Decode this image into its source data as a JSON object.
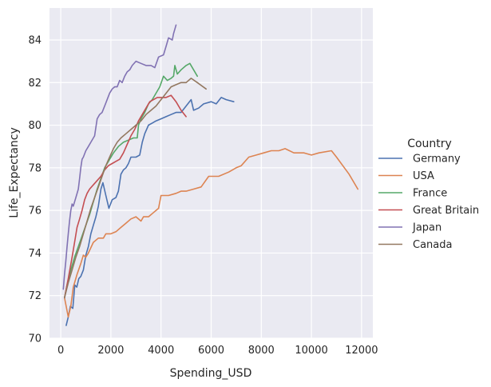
{
  "chart_data": {
    "type": "line",
    "xlabel": "Spending_USD",
    "ylabel": "Life_Expectancy",
    "xlim": [
      -450,
      12450
    ],
    "ylim": [
      70,
      85.5
    ],
    "xticks": [
      0,
      2000,
      4000,
      6000,
      8000,
      10000,
      12000
    ],
    "yticks": [
      70,
      72,
      74,
      76,
      78,
      80,
      82,
      84
    ],
    "grid": true,
    "legend": {
      "title": "Country",
      "placement": "right"
    },
    "series": [
      {
        "name": "Germany",
        "color": "#4c72b0",
        "points": [
          [
            215,
            70.6
          ],
          [
            300,
            71.0
          ],
          [
            380,
            71.5
          ],
          [
            480,
            71.4
          ],
          [
            560,
            72.5
          ],
          [
            640,
            72.4
          ],
          [
            720,
            72.8
          ],
          [
            800,
            72.9
          ],
          [
            900,
            73.2
          ],
          [
            1000,
            73.9
          ],
          [
            1100,
            74.3
          ],
          [
            1200,
            74.9
          ],
          [
            1300,
            75.3
          ],
          [
            1400,
            75.7
          ],
          [
            1500,
            76.2
          ],
          [
            1600,
            77.0
          ],
          [
            1680,
            77.3
          ],
          [
            1800,
            76.7
          ],
          [
            1920,
            76.1
          ],
          [
            2050,
            76.5
          ],
          [
            2200,
            76.6
          ],
          [
            2300,
            76.9
          ],
          [
            2400,
            77.7
          ],
          [
            2500,
            77.9
          ],
          [
            2600,
            78.0
          ],
          [
            2700,
            78.2
          ],
          [
            2800,
            78.5
          ],
          [
            3000,
            78.5
          ],
          [
            3150,
            78.6
          ],
          [
            3250,
            79.2
          ],
          [
            3350,
            79.6
          ],
          [
            3500,
            80.0
          ],
          [
            3650,
            80.1
          ],
          [
            3800,
            80.2
          ],
          [
            4000,
            80.3
          ],
          [
            4200,
            80.4
          ],
          [
            4400,
            80.5
          ],
          [
            4600,
            80.6
          ],
          [
            4800,
            80.6
          ],
          [
            5000,
            80.9
          ],
          [
            5200,
            81.2
          ],
          [
            5300,
            80.7
          ],
          [
            5500,
            80.8
          ],
          [
            5700,
            81.0
          ],
          [
            6000,
            81.1
          ],
          [
            6200,
            81.0
          ],
          [
            6400,
            81.3
          ],
          [
            6600,
            81.2
          ],
          [
            6900,
            81.1
          ]
        ]
      },
      {
        "name": "USA",
        "color": "#dd8452",
        "points": [
          [
            150,
            71.9
          ],
          [
            300,
            71.0
          ],
          [
            400,
            71.5
          ],
          [
            500,
            72.4
          ],
          [
            650,
            73.0
          ],
          [
            800,
            73.5
          ],
          [
            900,
            73.9
          ],
          [
            1000,
            73.8
          ],
          [
            1100,
            74.0
          ],
          [
            1300,
            74.5
          ],
          [
            1500,
            74.7
          ],
          [
            1700,
            74.7
          ],
          [
            1800,
            74.9
          ],
          [
            2000,
            74.9
          ],
          [
            2200,
            75.0
          ],
          [
            2400,
            75.2
          ],
          [
            2600,
            75.4
          ],
          [
            2800,
            75.6
          ],
          [
            3000,
            75.7
          ],
          [
            3200,
            75.5
          ],
          [
            3300,
            75.7
          ],
          [
            3500,
            75.7
          ],
          [
            3700,
            75.9
          ],
          [
            3900,
            76.1
          ],
          [
            4000,
            76.7
          ],
          [
            4300,
            76.7
          ],
          [
            4600,
            76.8
          ],
          [
            4800,
            76.9
          ],
          [
            5000,
            76.9
          ],
          [
            5300,
            77.0
          ],
          [
            5600,
            77.1
          ],
          [
            5900,
            77.6
          ],
          [
            6300,
            77.6
          ],
          [
            6700,
            77.8
          ],
          [
            7000,
            78.0
          ],
          [
            7200,
            78.1
          ],
          [
            7500,
            78.5
          ],
          [
            7800,
            78.6
          ],
          [
            8100,
            78.7
          ],
          [
            8400,
            78.8
          ],
          [
            8700,
            78.8
          ],
          [
            8950,
            78.9
          ],
          [
            9300,
            78.7
          ],
          [
            9700,
            78.7
          ],
          [
            10000,
            78.6
          ],
          [
            10300,
            78.7
          ],
          [
            10800,
            78.8
          ],
          [
            11000,
            78.5
          ],
          [
            11500,
            77.7
          ],
          [
            11850,
            77.0
          ]
        ]
      },
      {
        "name": "France",
        "color": "#55a868",
        "points": [
          [
            150,
            71.9
          ],
          [
            250,
            72.5
          ],
          [
            400,
            73.2
          ],
          [
            550,
            73.8
          ],
          [
            700,
            74.3
          ],
          [
            850,
            74.8
          ],
          [
            1000,
            75.3
          ],
          [
            1150,
            75.8
          ],
          [
            1300,
            76.4
          ],
          [
            1450,
            77.0
          ],
          [
            1600,
            77.5
          ],
          [
            1750,
            78.0
          ],
          [
            1900,
            78.3
          ],
          [
            2100,
            78.7
          ],
          [
            2300,
            79.0
          ],
          [
            2500,
            79.2
          ],
          [
            2700,
            79.3
          ],
          [
            2900,
            79.4
          ],
          [
            3050,
            79.4
          ],
          [
            3100,
            80.0
          ],
          [
            3200,
            80.3
          ],
          [
            3350,
            80.6
          ],
          [
            3500,
            81.0
          ],
          [
            3650,
            81.2
          ],
          [
            3800,
            81.5
          ],
          [
            3950,
            81.8
          ],
          [
            4100,
            82.3
          ],
          [
            4250,
            82.1
          ],
          [
            4400,
            82.2
          ],
          [
            4500,
            82.3
          ],
          [
            4550,
            82.8
          ],
          [
            4650,
            82.4
          ],
          [
            4800,
            82.6
          ],
          [
            5000,
            82.8
          ],
          [
            5150,
            82.9
          ],
          [
            5300,
            82.6
          ],
          [
            5450,
            82.3
          ]
        ]
      },
      {
        "name": "Great Britain",
        "color": "#c44e52",
        "points": [
          [
            150,
            71.9
          ],
          [
            300,
            72.8
          ],
          [
            450,
            73.8
          ],
          [
            550,
            74.5
          ],
          [
            650,
            75.2
          ],
          [
            750,
            75.6
          ],
          [
            850,
            76.0
          ],
          [
            950,
            76.5
          ],
          [
            1050,
            76.8
          ],
          [
            1150,
            77.0
          ],
          [
            1300,
            77.2
          ],
          [
            1450,
            77.4
          ],
          [
            1600,
            77.6
          ],
          [
            1750,
            77.9
          ],
          [
            1900,
            78.1
          ],
          [
            2050,
            78.2
          ],
          [
            2200,
            78.3
          ],
          [
            2350,
            78.4
          ],
          [
            2500,
            78.7
          ],
          [
            2650,
            79.1
          ],
          [
            2800,
            79.5
          ],
          [
            2950,
            79.8
          ],
          [
            3100,
            80.2
          ],
          [
            3250,
            80.5
          ],
          [
            3400,
            80.8
          ],
          [
            3550,
            81.1
          ],
          [
            3700,
            81.2
          ],
          [
            3850,
            81.3
          ],
          [
            4000,
            81.3
          ],
          [
            4200,
            81.3
          ],
          [
            4400,
            81.4
          ],
          [
            4600,
            81.1
          ],
          [
            4800,
            80.7
          ],
          [
            5000,
            80.4
          ]
        ]
      },
      {
        "name": "Japan",
        "color": "#8172b3",
        "points": [
          [
            100,
            72.3
          ],
          [
            150,
            73.0
          ],
          [
            200,
            73.6
          ],
          [
            250,
            74.3
          ],
          [
            300,
            74.9
          ],
          [
            350,
            75.5
          ],
          [
            400,
            76.0
          ],
          [
            450,
            76.3
          ],
          [
            500,
            76.2
          ],
          [
            600,
            76.6
          ],
          [
            700,
            77.0
          ],
          [
            750,
            77.5
          ],
          [
            800,
            78.0
          ],
          [
            850,
            78.4
          ],
          [
            900,
            78.5
          ],
          [
            1000,
            78.8
          ],
          [
            1100,
            79.0
          ],
          [
            1200,
            79.2
          ],
          [
            1350,
            79.5
          ],
          [
            1450,
            80.3
          ],
          [
            1550,
            80.5
          ],
          [
            1650,
            80.6
          ],
          [
            1750,
            80.9
          ],
          [
            1850,
            81.2
          ],
          [
            1950,
            81.5
          ],
          [
            2050,
            81.7
          ],
          [
            2150,
            81.8
          ],
          [
            2250,
            81.8
          ],
          [
            2350,
            82.1
          ],
          [
            2450,
            82.0
          ],
          [
            2550,
            82.3
          ],
          [
            2650,
            82.5
          ],
          [
            2750,
            82.6
          ],
          [
            2850,
            82.8
          ],
          [
            3000,
            83.0
          ],
          [
            3200,
            82.9
          ],
          [
            3400,
            82.8
          ],
          [
            3600,
            82.8
          ],
          [
            3750,
            82.7
          ],
          [
            3900,
            83.2
          ],
          [
            4100,
            83.3
          ],
          [
            4200,
            83.7
          ],
          [
            4300,
            84.1
          ],
          [
            4450,
            84.0
          ],
          [
            4500,
            84.3
          ],
          [
            4600,
            84.7
          ]
        ]
      },
      {
        "name": "Canada",
        "color": "#937860",
        "points": [
          [
            150,
            71.9
          ],
          [
            300,
            72.6
          ],
          [
            450,
            73.2
          ],
          [
            600,
            73.8
          ],
          [
            750,
            74.3
          ],
          [
            900,
            74.9
          ],
          [
            1050,
            75.5
          ],
          [
            1200,
            76.1
          ],
          [
            1350,
            76.6
          ],
          [
            1500,
            77.1
          ],
          [
            1650,
            77.6
          ],
          [
            1800,
            78.1
          ],
          [
            1950,
            78.5
          ],
          [
            2100,
            78.9
          ],
          [
            2250,
            79.2
          ],
          [
            2400,
            79.4
          ],
          [
            2600,
            79.6
          ],
          [
            2800,
            79.8
          ],
          [
            3000,
            80.0
          ],
          [
            3200,
            80.2
          ],
          [
            3400,
            80.5
          ],
          [
            3600,
            80.7
          ],
          [
            3800,
            80.9
          ],
          [
            4000,
            81.2
          ],
          [
            4200,
            81.5
          ],
          [
            4400,
            81.8
          ],
          [
            4600,
            81.9
          ],
          [
            4800,
            82.0
          ],
          [
            5000,
            82.0
          ],
          [
            5200,
            82.2
          ],
          [
            5450,
            82.0
          ],
          [
            5800,
            81.7
          ]
        ]
      }
    ]
  }
}
